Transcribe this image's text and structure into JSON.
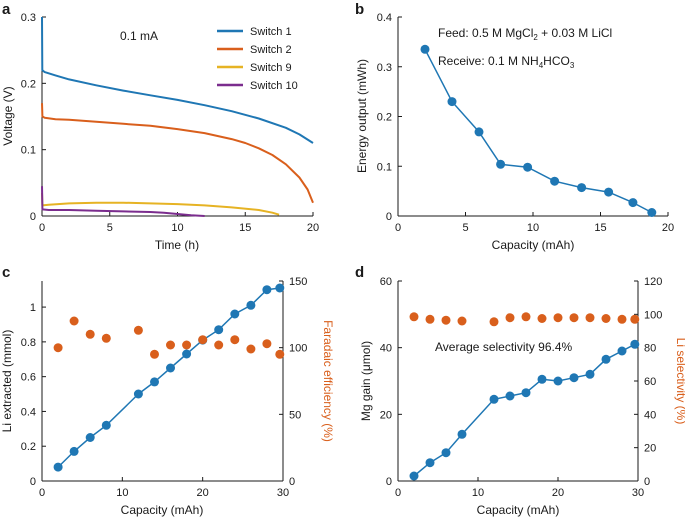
{
  "chart_data": [
    {
      "panel": "a",
      "type": "line",
      "annotation": "0.1 mA",
      "xlabel": "Time (h)",
      "ylabel": "Voltage (V)",
      "xlim": [
        0,
        20
      ],
      "ylim": [
        0,
        0.3
      ],
      "xticks": [
        0,
        5,
        10,
        15,
        20
      ],
      "yticks": [
        0,
        0.1,
        0.2,
        0.3
      ],
      "ytick_labels": [
        "0",
        "0.1",
        "0.2",
        "0.3"
      ],
      "legend_position": "top-right",
      "series": [
        {
          "name": "Switch 1",
          "color": "#1f77b4",
          "x": [
            0,
            0.02,
            0.2,
            1,
            2,
            4,
            6,
            8,
            10,
            12,
            14,
            16,
            18,
            19,
            20
          ],
          "y": [
            0.3,
            0.22,
            0.217,
            0.212,
            0.206,
            0.197,
            0.189,
            0.182,
            0.175,
            0.167,
            0.158,
            0.147,
            0.133,
            0.123,
            0.11
          ]
        },
        {
          "name": "Switch 2",
          "color": "#d95f1c",
          "x": [
            0,
            0.03,
            0.2,
            1,
            2,
            4,
            6,
            8,
            10,
            12,
            14,
            15,
            16,
            17,
            18,
            19,
            19.6,
            20
          ],
          "y": [
            0.17,
            0.15,
            0.148,
            0.146,
            0.145,
            0.142,
            0.139,
            0.136,
            0.131,
            0.125,
            0.116,
            0.11,
            0.102,
            0.092,
            0.078,
            0.058,
            0.04,
            0.02
          ]
        },
        {
          "name": "Switch 9",
          "color": "#e6b324",
          "x": [
            0,
            0.03,
            0.5,
            2,
            4,
            6,
            8,
            10,
            12,
            14,
            16,
            17,
            17.5
          ],
          "y": [
            0.035,
            0.016,
            0.017,
            0.019,
            0.02,
            0.02,
            0.019,
            0.018,
            0.016,
            0.013,
            0.009,
            0.005,
            0.002
          ]
        },
        {
          "name": "Switch 10",
          "color": "#7b2d8e",
          "x": [
            0,
            0.03,
            0.5,
            2,
            4,
            6,
            8,
            9,
            10,
            11,
            12
          ],
          "y": [
            0.045,
            0.01,
            0.009,
            0.009,
            0.008,
            0.007,
            0.006,
            0.005,
            0.003,
            0.001,
            0
          ]
        }
      ]
    },
    {
      "panel": "b",
      "type": "line",
      "annotation_feed": "Feed: 0.5 M MgCl",
      "annotation_feed_sub": "2",
      "annotation_feed_rest": " + 0.03 M LiCl",
      "annotation_receive": "Receive: 0.1 M NH",
      "annotation_receive_sub": "4",
      "annotation_receive_rest": "HCO",
      "annotation_receive_sub2": "3",
      "xlabel": "Capacity (mAh)",
      "ylabel": "Energy output (mWh)",
      "xlim": [
        0,
        20
      ],
      "ylim": [
        0,
        0.4
      ],
      "xticks": [
        0,
        5,
        10,
        15,
        20
      ],
      "yticks": [
        0,
        0.1,
        0.2,
        0.3,
        0.4
      ],
      "ytick_labels": [
        "0",
        "0.1",
        "0.2",
        "0.3",
        "0.4"
      ],
      "series": [
        {
          "name": "Energy output",
          "color": "#1f77b4",
          "x": [
            2,
            4,
            6,
            7.6,
            9.6,
            11.6,
            13.6,
            15.6,
            17.4,
            18.8
          ],
          "y": [
            0.335,
            0.23,
            0.169,
            0.104,
            0.098,
            0.07,
            0.057,
            0.048,
            0.027,
            0.007
          ]
        }
      ]
    },
    {
      "panel": "c",
      "type": "line",
      "xlabel": "Capacity (mAh)",
      "ylabel": "Li extracted (mmol)",
      "y2label": "Faradaic efficiency (%)",
      "xlim": [
        0,
        30
      ],
      "ylim": [
        0,
        1.15
      ],
      "y2lim": [
        0,
        150
      ],
      "xticks": [
        0,
        10,
        20,
        30
      ],
      "yticks": [
        0,
        0.2,
        0.4,
        0.6,
        0.8,
        1
      ],
      "ytick_labels": [
        "0",
        "0.2",
        "0.4",
        "0.6",
        "0.8",
        "1"
      ],
      "y2ticks": [
        0,
        50,
        100,
        150
      ],
      "series": [
        {
          "name": "Li extracted",
          "color": "#1f77b4",
          "axis": "left",
          "connect": true,
          "x": [
            2,
            4,
            6,
            8,
            12,
            14,
            16,
            18,
            20,
            22,
            24,
            26,
            28,
            29.6
          ],
          "y": [
            0.08,
            0.17,
            0.25,
            0.32,
            0.5,
            0.57,
            0.65,
            0.73,
            0.81,
            0.87,
            0.96,
            1.01,
            1.1,
            1.11
          ]
        },
        {
          "name": "Faradaic efficiency",
          "color": "#d95f1c",
          "axis": "right",
          "connect": false,
          "x": [
            2,
            4,
            6,
            8,
            12,
            14,
            16,
            18,
            20,
            22,
            24,
            26,
            28,
            29.6
          ],
          "y": [
            100,
            120,
            110,
            107,
            113,
            95,
            102,
            102,
            106,
            102,
            106,
            99,
            103,
            95
          ]
        }
      ]
    },
    {
      "panel": "d",
      "type": "line",
      "annotation": "Average selectivity 96.4%",
      "xlabel": "Capacity (mAh)",
      "ylabel": "Mg gain (μmol)",
      "y2label": "Li selectivity (%)",
      "xlim": [
        0,
        30
      ],
      "ylim": [
        0,
        60
      ],
      "y2lim": [
        0,
        120
      ],
      "xticks": [
        0,
        10,
        20,
        30
      ],
      "yticks": [
        0,
        20,
        40,
        60
      ],
      "y2ticks": [
        0,
        20,
        40,
        60,
        80,
        100,
        120
      ],
      "series": [
        {
          "name": "Mg gain",
          "color": "#1f77b4",
          "axis": "left",
          "connect": true,
          "x": [
            2,
            4,
            6,
            8,
            12,
            14,
            16,
            18,
            20,
            22,
            24,
            26,
            28,
            29.6
          ],
          "y": [
            1.5,
            5.5,
            8.5,
            14,
            24.5,
            25.5,
            26.5,
            30.5,
            30,
            31,
            32,
            36.5,
            39,
            41
          ]
        },
        {
          "name": "Li selectivity",
          "color": "#d95f1c",
          "axis": "right",
          "connect": false,
          "x": [
            2,
            4,
            6,
            8,
            12,
            14,
            16,
            18,
            20,
            22,
            24,
            26,
            28,
            29.6
          ],
          "y": [
            98.5,
            97,
            96.5,
            96,
            95.5,
            98,
            98.5,
            97.5,
            98,
            98,
            98,
            97.5,
            97,
            97
          ]
        }
      ]
    }
  ]
}
